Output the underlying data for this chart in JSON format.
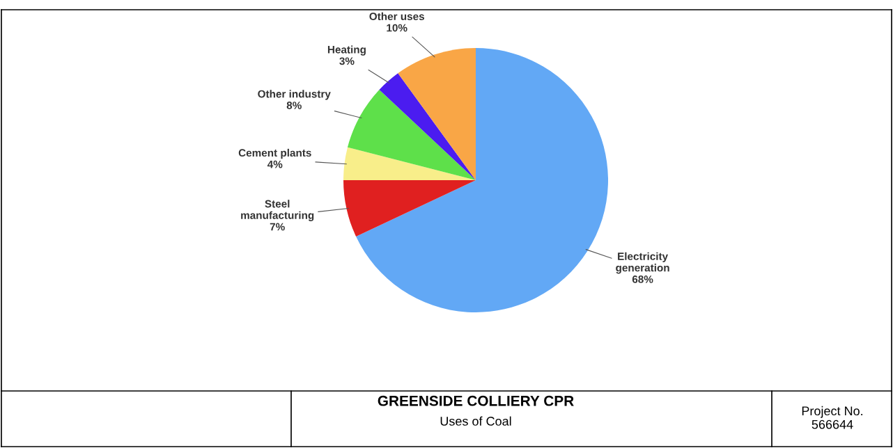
{
  "chart_data": {
    "type": "pie",
    "title": "GREENSIDE COLLIERY CPR",
    "subtitle": "Uses of Coal",
    "categories": [
      "Electricity\ngeneration",
      "Steel\nmanufacturing",
      "Cement plants",
      "Other industry",
      "Heating",
      "Other uses"
    ],
    "values": [
      68,
      7,
      4,
      8,
      3,
      10
    ],
    "colors": [
      "#62a8f5",
      "#e02020",
      "#f8ee8a",
      "#5ee04a",
      "#4b1cf0",
      "#f9a646"
    ],
    "value_labels": [
      "68%",
      "7%",
      "4%",
      "8%",
      "3%",
      "10%"
    ],
    "annotations": [
      "Project No.\n566644"
    ],
    "legend": false
  }
}
